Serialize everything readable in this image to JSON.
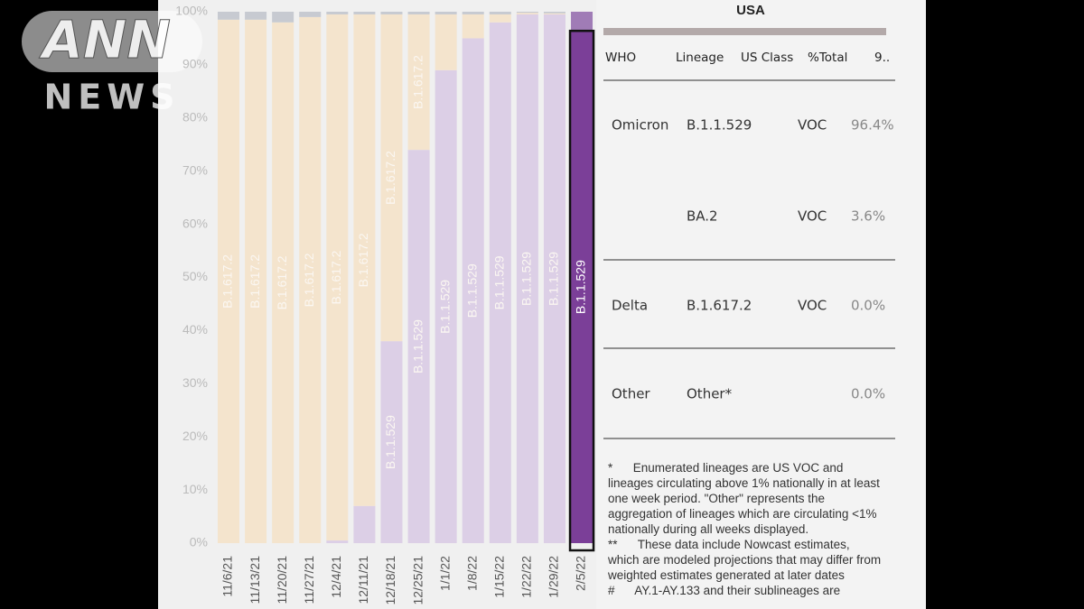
{
  "chart_data": {
    "type": "stacked-bar",
    "categories": [
      "11/6/21",
      "11/13/21",
      "11/20/21",
      "11/27/21",
      "12/4/21",
      "12/11/21",
      "12/18/21",
      "12/25/21",
      "1/1/22",
      "1/8/22",
      "1/15/22",
      "1/22/22",
      "1/29/22",
      "2/5/22"
    ],
    "series": [
      {
        "name": "B.1.1.529",
        "color": "#7b3f98",
        "values": [
          0,
          0,
          0,
          0,
          0.5,
          7,
          38,
          74,
          89,
          95,
          98,
          99.5,
          99.5,
          96.4
        ]
      },
      {
        "name": "BA.2",
        "color": "#a07cb6",
        "values": [
          0,
          0,
          0,
          0,
          0,
          0,
          0,
          0,
          0,
          0,
          0,
          0,
          0,
          3.6
        ]
      },
      {
        "name": "B.1.617.2",
        "color": "#e9b778",
        "values": [
          98.5,
          98.5,
          98,
          99,
          99,
          92.5,
          61.5,
          25.5,
          10.5,
          4.5,
          1.5,
          0.3,
          0.2,
          0
        ]
      },
      {
        "name": "Other",
        "color": "#8a8f9c",
        "values": [
          1.5,
          1.5,
          2,
          1,
          0.5,
          0.5,
          0.5,
          0.5,
          0.5,
          0.5,
          0.5,
          0.2,
          0.3,
          0
        ]
      }
    ],
    "highlight_category": "2/5/22",
    "ylim": [
      0,
      100
    ],
    "yticks": [
      {
        "value": 0,
        "label": "0%"
      },
      {
        "value": 10,
        "label": "10%"
      },
      {
        "value": 20,
        "label": "20%"
      },
      {
        "value": 30,
        "label": "30%"
      },
      {
        "value": 40,
        "label": "40%"
      },
      {
        "value": 50,
        "label": "50%"
      },
      {
        "value": 60,
        "label": "60%"
      },
      {
        "value": 70,
        "label": "70%"
      },
      {
        "value": 80,
        "label": "80%"
      },
      {
        "value": 90,
        "label": "90%"
      },
      {
        "value": 100,
        "label": "100%"
      }
    ]
  },
  "table": {
    "title": "USA",
    "columns": [
      "WHO",
      "Lineage",
      "US Class",
      "%Total",
      "9.."
    ],
    "rows": [
      {
        "who": "Omicron",
        "lineage": "B.1.1.529",
        "us_class": "VOC",
        "total": "96.4%"
      },
      {
        "lineage": "BA.2",
        "us_class": "VOC",
        "total": "3.6%"
      },
      {
        "who": "Delta",
        "lineage": "B.1.617.2",
        "us_class": "VOC",
        "total": "0.0%"
      },
      {
        "who": "Other",
        "lineage": "Other*",
        "total": "0.0%"
      }
    ],
    "footnotes": [
      "*      Enumerated lineages are US VOC and lineages circulating above 1% nationally in at least one week period. \"Other\" represents the aggregation of lineages which are circulating <1% nationally during all weeks displayed.",
      "**      These data include Nowcast estimates, which are modeled projections that may differ from weighted estimates generated at later dates",
      "#      AY.1-AY.133 and their sublineages are"
    ]
  },
  "logo": {
    "top": "ANN",
    "bottom": "NEWS"
  }
}
